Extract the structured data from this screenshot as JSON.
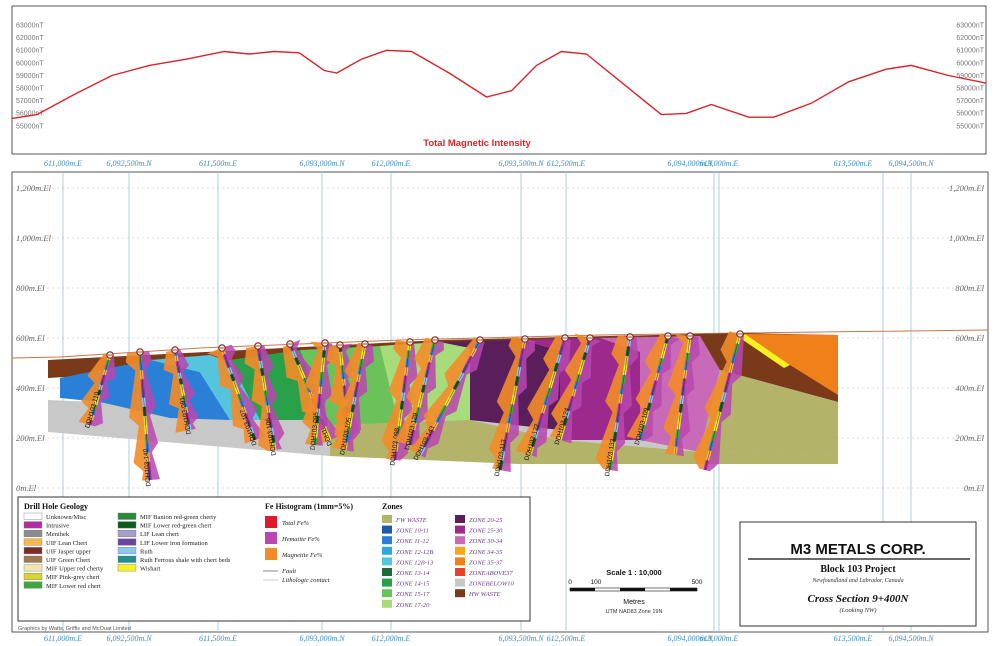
{
  "mag_panel": {
    "title": "Total Magnetic Intensity",
    "ticks": [
      "63000nT",
      "62000nT",
      "61000nT",
      "60000nT",
      "59000nT",
      "58000nT",
      "57000nT",
      "56000nT",
      "55000nT"
    ]
  },
  "top_coords": [
    {
      "text": "611,000m.E"
    },
    {
      "text": "6,092,500m.N"
    },
    {
      "text": "611,500m.E"
    },
    {
      "text": "6,093,000m.N"
    },
    {
      "text": "612,000m.E"
    },
    {
      "text": "6,093,500m.N"
    },
    {
      "text": "612,500m.E"
    },
    {
      "text": "6,094,000m.N"
    },
    {
      "text": "613,000m.E"
    },
    {
      "text": "613,500m.E"
    },
    {
      "text": "6,094,500m.N"
    }
  ],
  "bottom_coords": [
    {
      "text": "611,000m.E"
    },
    {
      "text": "6,092,500m.N"
    },
    {
      "text": "611,500m.E"
    },
    {
      "text": "6,093,000m.N"
    },
    {
      "text": "612,000m.E"
    },
    {
      "text": "6,093,500m.N"
    },
    {
      "text": "612,500m.E"
    },
    {
      "text": "6,094,000m.N"
    },
    {
      "text": "613,000m.E"
    },
    {
      "text": "613,500m.E"
    },
    {
      "text": "6,094,500m.N"
    }
  ],
  "elevations": [
    "1,200m.El",
    "1,000m.El",
    "800m.El",
    "600m.El",
    "400m.El",
    "200m.El",
    "0m.El"
  ],
  "holes": [
    "DDH103-110",
    "DDH103-140",
    "DDH103-091",
    "DDH103-107",
    "DDH103-106",
    "DDH103-097",
    "DDH103-095",
    "DDH103-096",
    "DDH103-105",
    "DDH103-098",
    "DDH103-129",
    "DDH103-143",
    "DDH103-113",
    "DDH103-122",
    "DDH103-124",
    "DDH103-133",
    "DDH103-109"
  ],
  "legend": {
    "geology_title": "Drill Hole Geology",
    "geology": [
      {
        "label": "Unknown/Misc",
        "color": "#ffffff"
      },
      {
        "label": "Intrusive",
        "color": "#b02ea6"
      },
      {
        "label": "Menihek",
        "color": "#8c8c8c"
      },
      {
        "label": "UIF Lean Chert",
        "color": "#f7b84a"
      },
      {
        "label": "UIF Jasper upper",
        "color": "#7a2b2b"
      },
      {
        "label": "UIF Green Chert",
        "color": "#9e7a52"
      },
      {
        "label": "MIF Upper red cherty",
        "color": "#f0e6b0"
      },
      {
        "label": "MIF Pink-grey chert",
        "color": "#d6d62e"
      },
      {
        "label": "MIF Lower red chert",
        "color": "#3aa83a"
      },
      {
        "label": "MIF Banion red-green cherty",
        "color": "#2b8a3a"
      },
      {
        "label": "MIF Lower red-green chert",
        "color": "#0f5a1f"
      },
      {
        "label": "LIF Lean chert",
        "color": "#a89ccc"
      },
      {
        "label": "LIF Lower iron formation",
        "color": "#6a45a0"
      },
      {
        "label": "Ruth",
        "color": "#8cc8ee"
      },
      {
        "label": "Ruth Ferrous shale with chert beds",
        "color": "#1f8f8f"
      },
      {
        "label": "Wishart",
        "color": "#f7f022"
      }
    ],
    "fe_title": "Fe Histogram (1mm=5%)",
    "fe": [
      {
        "label": "Total Fe%",
        "color": "#e0192e"
      },
      {
        "label": "Hematite Fe%",
        "color": "#b947b0"
      },
      {
        "label": "Magnetite Fe%",
        "color": "#f28c28"
      }
    ],
    "lines": [
      {
        "label": "Fault"
      },
      {
        "label": "Lithologic contact"
      }
    ],
    "zones_title": "Zones",
    "zones": [
      {
        "label": "FW WASTE",
        "color": "#b3b36a"
      },
      {
        "label": "ZONE 10-11",
        "color": "#1f5aa8"
      },
      {
        "label": "ZONE 11-12",
        "color": "#2a7fd6"
      },
      {
        "label": "ZONE 12-12B",
        "color": "#33a6e0"
      },
      {
        "label": "ZONE 12B-13",
        "color": "#55c4dd"
      },
      {
        "label": "ZONE 13-14",
        "color": "#1f6a3a"
      },
      {
        "label": "ZONE 14-15",
        "color": "#29a04a"
      },
      {
        "label": "ZONE 15-17",
        "color": "#6cc25a"
      },
      {
        "label": "ZONE 17-20",
        "color": "#a8dc7a"
      },
      {
        "label": "ZONE 20-25",
        "color": "#5a1f5a"
      },
      {
        "label": "ZONE 25-30",
        "color": "#9c2a8c"
      },
      {
        "label": "ZONE 30-34",
        "color": "#c86ab8"
      },
      {
        "label": "ZONE 34-35",
        "color": "#f7a81a"
      },
      {
        "label": "ZONE 35-37",
        "color": "#f0801a"
      },
      {
        "label": "ZONEABOVE37",
        "color": "#e8402a"
      },
      {
        "label": "ZONEBELOW10",
        "color": "#c8c8c8"
      },
      {
        "label": "HW WASTE",
        "color": "#7a3a1a"
      }
    ]
  },
  "scale": {
    "title": "Scale 1 : 10,000",
    "ticks": [
      "0",
      "100",
      "500"
    ],
    "unit": "Metres",
    "datum": "UTM NAD83 Zone 19N"
  },
  "title_block": {
    "company": "M3 METALS CORP.",
    "project": "Block 103 Project",
    "location": "Newfoundland and Labrador, Canada",
    "section": "Cross Section 9+400N",
    "looking": "(Looking NW)"
  },
  "credit": "Graphics by Watts, Griffis and McOuat Limited",
  "colors": {
    "mag_line": "#d8232a",
    "grid": "#8fc6e0",
    "hw_waste": "#7a3a1a",
    "fw_waste": "#b3b36a",
    "below10": "#c8c8c8"
  },
  "mag_profile": [
    [
      55600,
      611000
    ],
    [
      55900,
      611100
    ],
    [
      57500,
      611250
    ],
    [
      59000,
      611400
    ],
    [
      59800,
      611550
    ],
    [
      60300,
      611700
    ],
    [
      60900,
      611850
    ],
    [
      60700,
      611950
    ],
    [
      60900,
      612050
    ],
    [
      60800,
      612150
    ],
    [
      59400,
      612250
    ],
    [
      59200,
      612300
    ],
    [
      60300,
      612400
    ],
    [
      61000,
      612500
    ],
    [
      60900,
      612600
    ],
    [
      59200,
      612750
    ],
    [
      57300,
      612900
    ],
    [
      57800,
      613000
    ],
    [
      59800,
      613100
    ],
    [
      60900,
      613200
    ],
    [
      60700,
      613300
    ],
    [
      58300,
      613450
    ],
    [
      55900,
      613600
    ],
    [
      56000,
      613700
    ],
    [
      56700,
      613800
    ],
    [
      55700,
      613950
    ],
    [
      55700,
      614050
    ],
    [
      56800,
      614200
    ],
    [
      58500,
      614350
    ],
    [
      59500,
      614500
    ],
    [
      59800,
      614600
    ],
    [
      59000,
      614750
    ],
    [
      58400,
      614900
    ]
  ]
}
